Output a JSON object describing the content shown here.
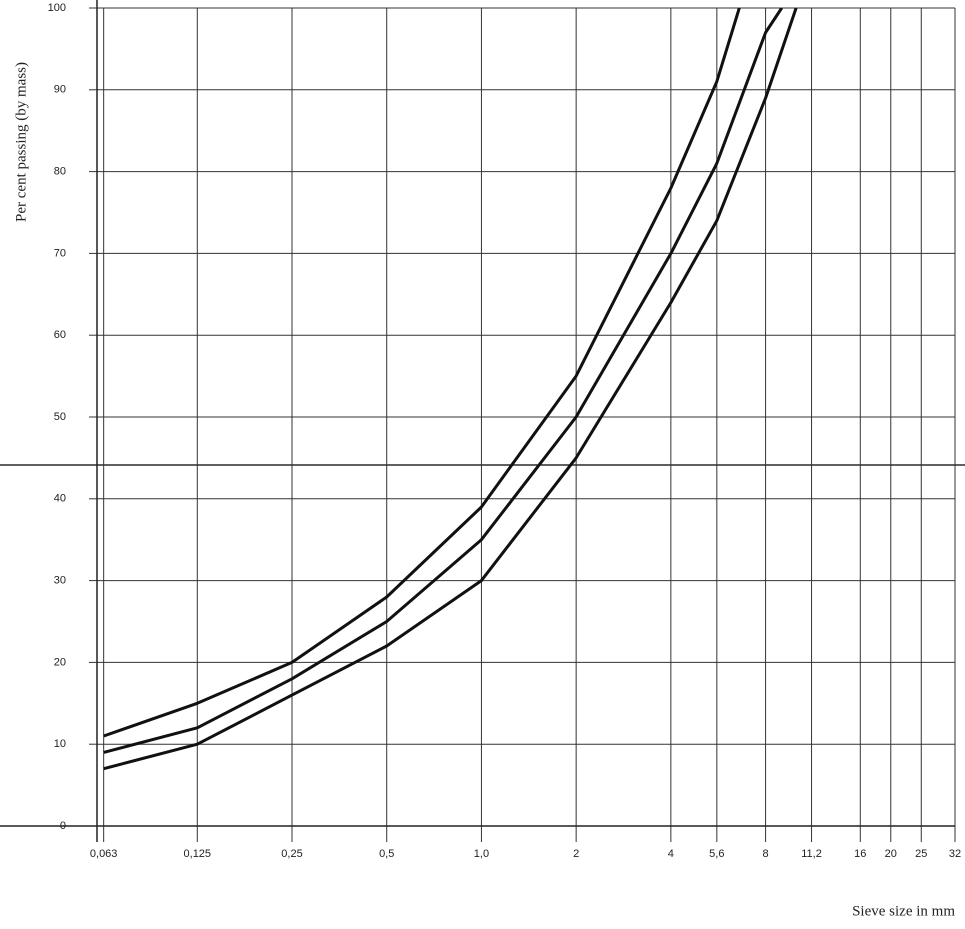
{
  "chart_data": {
    "type": "line",
    "x_label": "Sieve size in mm",
    "y_label": "Per cent passing (by mass)",
    "log_x": true,
    "grid": true,
    "xlim": [
      0.06,
      32
    ],
    "ylim": [
      0,
      100
    ],
    "xticks": [
      {
        "value": 0.063,
        "label": "0,063"
      },
      {
        "value": 0.125,
        "label": "0,125"
      },
      {
        "value": 0.25,
        "label": "0,25"
      },
      {
        "value": 0.5,
        "label": "0,5"
      },
      {
        "value": 1,
        "label": "1,0"
      },
      2,
      4,
      {
        "value": 5.6,
        "label": "5,6"
      },
      8,
      {
        "value": 11.2,
        "label": "11,2"
      },
      16,
      20,
      25,
      32
    ],
    "yticks": [
      0,
      10,
      20,
      30,
      40,
      50,
      60,
      70,
      80,
      90,
      100
    ],
    "series": [
      {
        "color": "#111111",
        "x": [
          0.063,
          0.125,
          0.25,
          0.5,
          1,
          2,
          4,
          5.6,
          6.6
        ],
        "values": [
          11,
          15,
          20,
          28,
          39,
          55,
          78,
          91,
          100
        ]
      },
      {
        "color": "#111111",
        "x": [
          0.063,
          0.125,
          0.25,
          0.5,
          1,
          2,
          4,
          5.6,
          8,
          9
        ],
        "values": [
          9,
          12,
          18,
          25,
          35,
          50,
          70,
          81,
          97,
          100
        ]
      },
      {
        "color": "#111111",
        "x": [
          0.063,
          0.125,
          0.25,
          0.5,
          1,
          2,
          4,
          5.6,
          8,
          10
        ],
        "values": [
          7,
          10,
          16,
          22,
          30,
          45,
          64,
          74,
          89,
          100
        ]
      }
    ]
  }
}
